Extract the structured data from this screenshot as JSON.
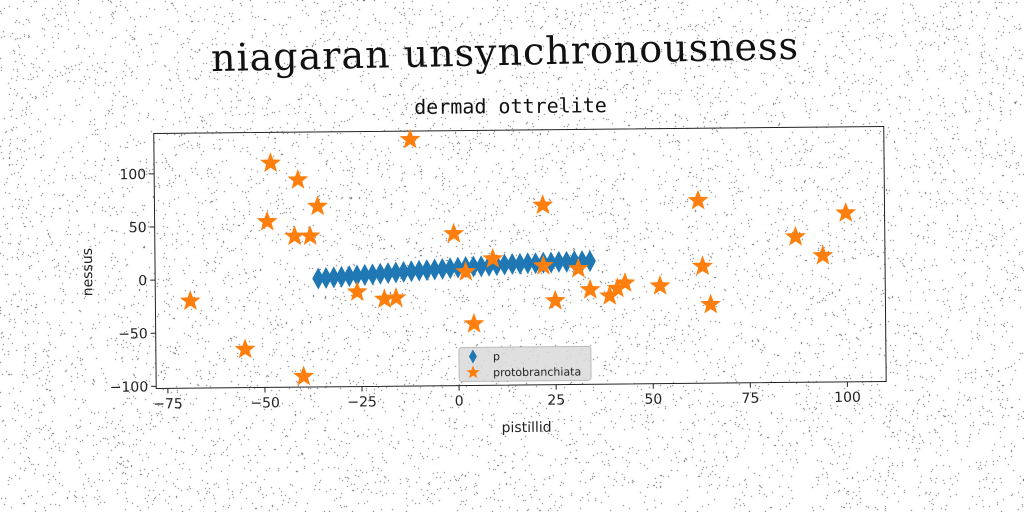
{
  "chart_data": {
    "type": "scatter",
    "title": "niagaran unsynchronousness",
    "subtitle": "dermad ottrelite",
    "xlabel": "pistillid",
    "ylabel": "nessus",
    "xlim": [
      -78,
      110
    ],
    "ylim": [
      -102,
      138
    ],
    "xticks": [
      -75,
      -50,
      -25,
      0,
      25,
      50,
      75,
      100
    ],
    "yticks": [
      -100,
      -50,
      0,
      50,
      100
    ],
    "grid": false,
    "legend_position": "bottom-center",
    "series": [
      {
        "name": "p",
        "marker": "diamond",
        "color": "#1f77b4",
        "points": [
          [
            -36,
            0
          ],
          [
            -34,
            0.5
          ],
          [
            -32,
            1
          ],
          [
            -30,
            1.5
          ],
          [
            -28,
            2
          ],
          [
            -26,
            2.5
          ],
          [
            -24,
            3
          ],
          [
            -22,
            3.5
          ],
          [
            -20,
            4
          ],
          [
            -18,
            4.5
          ],
          [
            -16,
            5
          ],
          [
            -14,
            5.5
          ],
          [
            -12,
            6
          ],
          [
            -10,
            6.5
          ],
          [
            -8,
            7
          ],
          [
            -6,
            7.5
          ],
          [
            -4,
            8
          ],
          [
            -2,
            8.5
          ],
          [
            0,
            9
          ],
          [
            2,
            9.5
          ],
          [
            4,
            10
          ],
          [
            6,
            10
          ],
          [
            8,
            10.5
          ],
          [
            10,
            11
          ],
          [
            12,
            11.5
          ],
          [
            14,
            12
          ],
          [
            16,
            12
          ],
          [
            18,
            12.5
          ],
          [
            20,
            12.5
          ],
          [
            22,
            13
          ],
          [
            24,
            13
          ],
          [
            26,
            13.5
          ],
          [
            28,
            13.5
          ],
          [
            30,
            14
          ],
          [
            32,
            14
          ],
          [
            34,
            14
          ]
        ]
      },
      {
        "name": "protobranchiata",
        "marker": "star",
        "color": "#ff7f0e",
        "points": [
          [
            -12,
            130
          ],
          [
            -48,
            109
          ],
          [
            -41,
            93
          ],
          [
            -36,
            68
          ],
          [
            -49,
            54
          ],
          [
            -42,
            40
          ],
          [
            -38,
            40
          ],
          [
            -69,
            -20
          ],
          [
            -55,
            -66
          ],
          [
            -40,
            -92
          ],
          [
            -26,
            -13
          ],
          [
            -19,
            -20
          ],
          [
            -16,
            -19
          ],
          [
            -1,
            41
          ],
          [
            2,
            5
          ],
          [
            4,
            -44
          ],
          [
            9,
            17
          ],
          [
            22,
            67
          ],
          [
            22,
            10
          ],
          [
            25,
            -23
          ],
          [
            31,
            7
          ],
          [
            34,
            -13
          ],
          [
            39,
            -19
          ],
          [
            41,
            -12
          ],
          [
            43,
            -7
          ],
          [
            52,
            -10
          ],
          [
            62,
            70
          ],
          [
            63,
            8
          ],
          [
            65,
            -28
          ],
          [
            87,
            35
          ],
          [
            94,
            17
          ],
          [
            100,
            57
          ]
        ]
      }
    ]
  }
}
